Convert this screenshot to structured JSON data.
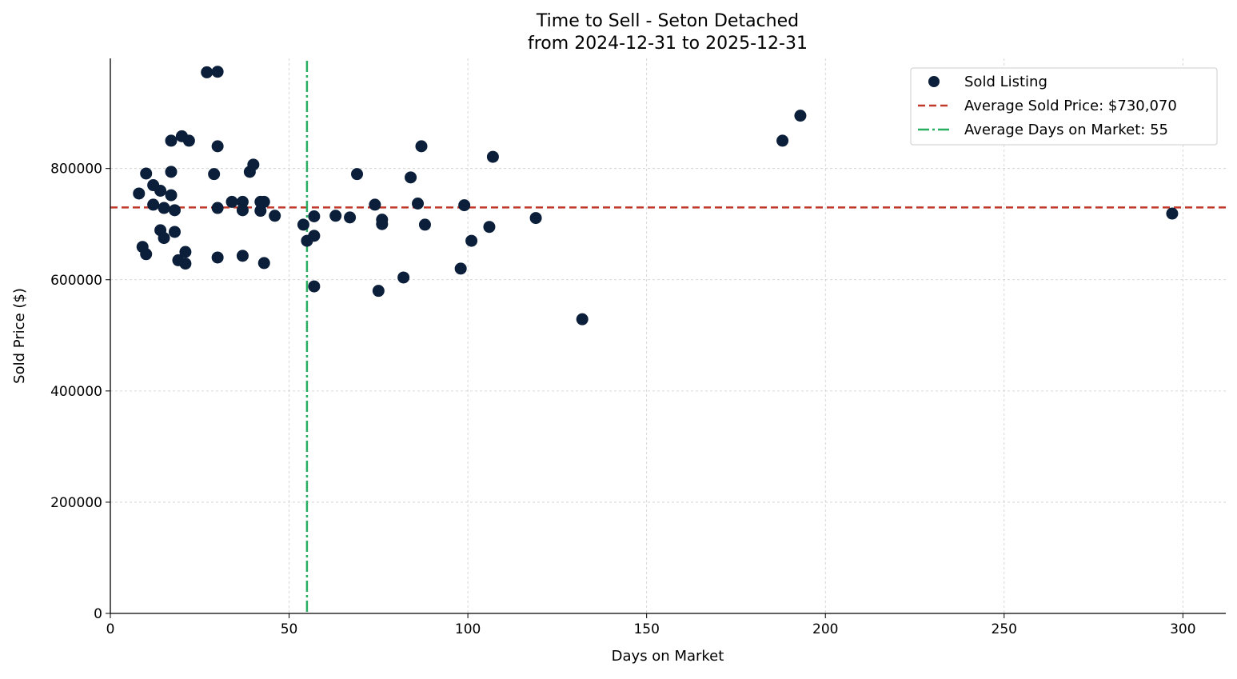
{
  "chart_data": {
    "type": "scatter",
    "title": "Time to Sell - Seton Detached",
    "subtitle": "from 2024-12-31 to 2025-12-31",
    "xlabel": "Days on Market",
    "ylabel": "Sold Price ($)",
    "xlim": [
      0,
      312
    ],
    "ylim": [
      0,
      998000
    ],
    "xticks": [
      0,
      50,
      100,
      150,
      200,
      250,
      300
    ],
    "yticks": [
      0,
      200000,
      400000,
      600000,
      800000
    ],
    "grid": true,
    "legend_position": "top-right",
    "colors": {
      "points": "#0b1f3a",
      "avg_price": "#c0392b",
      "avg_days": "#27ae60"
    },
    "series": [
      {
        "name": "Sold Listing",
        "points": [
          [
            8,
            755000
          ],
          [
            9,
            659000
          ],
          [
            10,
            646000
          ],
          [
            10,
            791000
          ],
          [
            12,
            770000
          ],
          [
            12,
            735000
          ],
          [
            14,
            760000
          ],
          [
            14,
            689000
          ],
          [
            15,
            729000
          ],
          [
            15,
            675000
          ],
          [
            17,
            850000
          ],
          [
            17,
            794000
          ],
          [
            17,
            752000
          ],
          [
            18,
            725000
          ],
          [
            18,
            686000
          ],
          [
            19,
            635000
          ],
          [
            20,
            858000
          ],
          [
            21,
            650000
          ],
          [
            21,
            629000
          ],
          [
            22,
            850000
          ],
          [
            27,
            973000
          ],
          [
            29,
            790000
          ],
          [
            30,
            974000
          ],
          [
            30,
            840000
          ],
          [
            30,
            729000
          ],
          [
            30,
            640000
          ],
          [
            34,
            740000
          ],
          [
            37,
            740000
          ],
          [
            37,
            725000
          ],
          [
            37,
            643000
          ],
          [
            39,
            794000
          ],
          [
            40,
            807000
          ],
          [
            42,
            740000
          ],
          [
            42,
            724000
          ],
          [
            43,
            740000
          ],
          [
            43,
            630000
          ],
          [
            46,
            715000
          ],
          [
            54,
            699000
          ],
          [
            55,
            670000
          ],
          [
            57,
            714000
          ],
          [
            57,
            679000
          ],
          [
            57,
            588000
          ],
          [
            63,
            715000
          ],
          [
            67,
            712000
          ],
          [
            69,
            790000
          ],
          [
            74,
            735000
          ],
          [
            75,
            580000
          ],
          [
            76,
            708000
          ],
          [
            76,
            700000
          ],
          [
            82,
            604000
          ],
          [
            84,
            784000
          ],
          [
            86,
            737000
          ],
          [
            87,
            840000
          ],
          [
            88,
            699000
          ],
          [
            98,
            620000
          ],
          [
            99,
            734000
          ],
          [
            101,
            670000
          ],
          [
            106,
            695000
          ],
          [
            107,
            821000
          ],
          [
            119,
            711000
          ],
          [
            132,
            529000
          ],
          [
            188,
            850000
          ],
          [
            193,
            895000
          ],
          [
            297,
            719000
          ]
        ]
      }
    ],
    "lines": {
      "avg_price": {
        "label": "Average Sold Price: $730,070",
        "value": 730070
      },
      "avg_days": {
        "label": "Average Days on Market: 55",
        "value": 55
      }
    }
  }
}
